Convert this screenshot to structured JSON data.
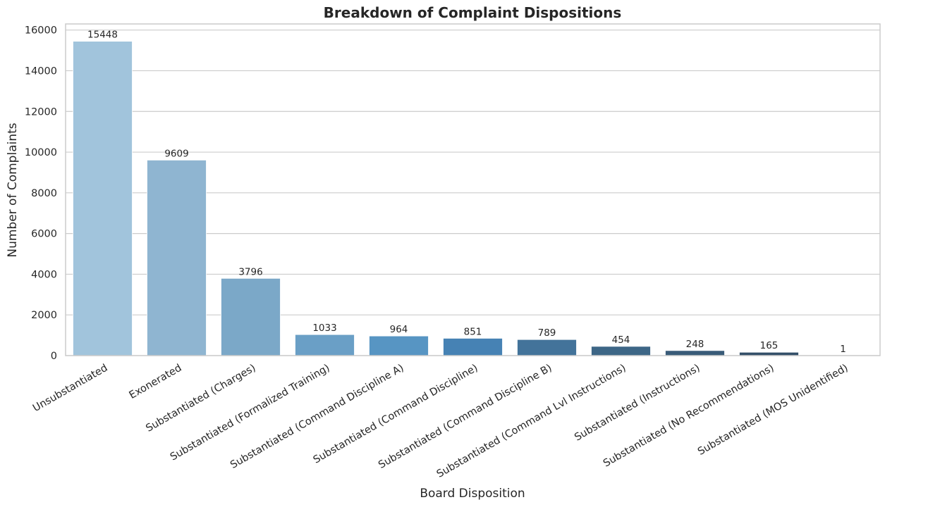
{
  "chart_data": {
    "type": "bar",
    "title": "Breakdown of Complaint Dispositions",
    "xlabel": "Board Disposition",
    "ylabel": "Number of Complaints",
    "ylim": [
      0,
      16300
    ],
    "yticks": [
      0,
      2000,
      4000,
      6000,
      8000,
      10000,
      12000,
      14000,
      16000
    ],
    "grid": true,
    "categories": [
      "Unsubstantiated",
      "Exonerated",
      "Substantiated (Charges)",
      "Substantiated (Formalized Training)",
      "Substantiated (Command Discipline A)",
      "Substantiated (Command Discipline)",
      "Substantiated (Command Discipline B)",
      "Substantiated (Command Lvl Instructions)",
      "Substantiated (Instructions)",
      "Substantiated (No Recommendations)",
      "Substantiated (MOS Unidentified)"
    ],
    "values": [
      15448,
      9609,
      3796,
      1033,
      964,
      851,
      789,
      454,
      248,
      165,
      1
    ],
    "colors": [
      "#a1c4dc",
      "#8fb5d1",
      "#7ba8c8",
      "#6a9fc6",
      "#5795c3",
      "#4682b4",
      "#43739a",
      "#3d6686",
      "#395b78",
      "#334f68",
      "#2e4860"
    ]
  }
}
